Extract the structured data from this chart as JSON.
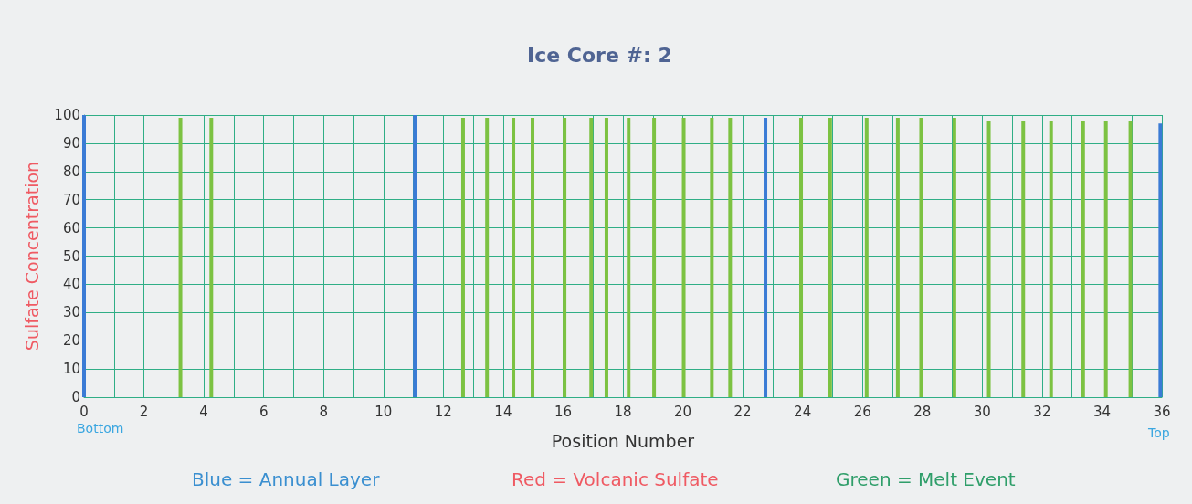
{
  "chart_data": {
    "type": "bar",
    "title": "Ice Core #: 2",
    "xlabel": "Position Number",
    "ylabel": "Sulfate Concentration",
    "xlim": [
      0,
      36
    ],
    "ylim": [
      0,
      100
    ],
    "xticks": [
      0,
      {
        "value": 1,
        "label": null
      },
      2,
      {
        "value": 3,
        "label": null
      },
      4,
      {
        "value": 5,
        "label": null
      },
      6,
      {
        "value": 7,
        "label": null
      },
      8,
      {
        "value": 9,
        "label": null
      },
      10,
      {
        "value": 11,
        "label": null
      },
      12,
      {
        "value": 13,
        "label": null
      },
      14,
      {
        "value": 15,
        "label": null
      },
      16,
      {
        "value": 17,
        "label": null
      },
      18,
      {
        "value": 19,
        "label": null
      },
      20,
      {
        "value": 21,
        "label": null
      },
      22,
      {
        "value": 23,
        "label": null
      },
      24,
      {
        "value": 25,
        "label": null
      },
      26,
      {
        "value": 27,
        "label": null
      },
      28,
      {
        "value": 29,
        "label": null
      },
      30,
      {
        "value": 31,
        "label": null
      },
      32,
      {
        "value": 33,
        "label": null
      },
      34,
      {
        "value": 35,
        "label": null
      },
      36
    ],
    "yticks": [
      0,
      10,
      20,
      30,
      40,
      50,
      60,
      70,
      80,
      90,
      100
    ],
    "grid": true,
    "series": [
      {
        "color": "#3a7bd5",
        "x": [
          0,
          11.05,
          22.76,
          35.95
        ],
        "values": [
          100,
          100,
          99,
          97
        ]
      },
      {
        "color": "#7cc242",
        "x": [
          3.22,
          4.25,
          12.66,
          13.46,
          14.34,
          14.98,
          16.05,
          16.94,
          17.45,
          18.19,
          19.04,
          20.03,
          20.97,
          21.58,
          23.95,
          24.92,
          26.14,
          27.18,
          27.96,
          29.07,
          30.22,
          31.37,
          32.3,
          33.37,
          34.13,
          34.95
        ],
        "values": [
          99,
          99,
          99,
          99,
          99,
          99,
          99,
          99,
          99,
          99,
          99,
          99,
          99,
          99,
          99,
          99,
          99,
          99,
          99,
          99,
          98,
          98,
          98,
          98,
          98,
          98
        ]
      }
    ],
    "annotations": [
      "Bottom",
      "Top",
      "Blue = Annual Layer",
      "Red = Volcanic Sulfate",
      "Green = Melt Event"
    ]
  }
}
